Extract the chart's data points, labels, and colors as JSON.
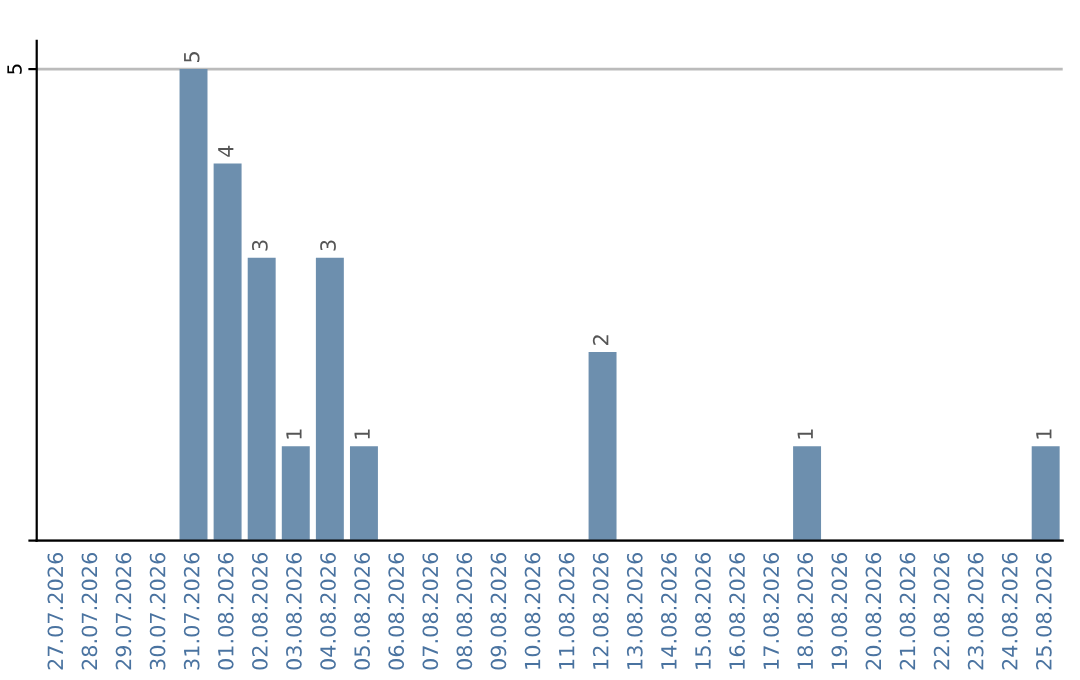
{
  "chart_data": {
    "type": "bar",
    "categories": [
      "27.07.2026",
      "28.07.2026",
      "29.07.2026",
      "30.07.2026",
      "31.07.2026",
      "01.08.2026",
      "02.08.2026",
      "03.08.2026",
      "04.08.2026",
      "05.08.2026",
      "06.08.2026",
      "07.08.2026",
      "08.08.2026",
      "09.08.2026",
      "10.08.2026",
      "11.08.2026",
      "12.08.2026",
      "13.08.2026",
      "14.08.2026",
      "15.08.2026",
      "16.08.2026",
      "17.08.2026",
      "18.08.2026",
      "19.08.2026",
      "20.08.2026",
      "21.08.2026",
      "22.08.2026",
      "23.08.2026",
      "24.08.2026",
      "25.08.2026"
    ],
    "values": [
      0,
      0,
      0,
      0,
      5,
      4,
      3,
      1,
      3,
      1,
      0,
      0,
      0,
      0,
      0,
      0,
      2,
      0,
      0,
      0,
      0,
      0,
      1,
      0,
      0,
      0,
      0,
      0,
      0,
      1
    ],
    "value_labels": [
      null,
      null,
      null,
      null,
      "5",
      "4",
      "3",
      "1",
      "3",
      "1",
      null,
      null,
      null,
      null,
      null,
      null,
      "2",
      null,
      null,
      null,
      null,
      null,
      "1",
      null,
      null,
      null,
      null,
      null,
      null,
      "1"
    ],
    "color": "#6d8fae",
    "ylim": [
      0,
      5
    ],
    "yticks": [
      {
        "value": 0,
        "label": null
      },
      5
    ],
    "grid": "y"
  }
}
